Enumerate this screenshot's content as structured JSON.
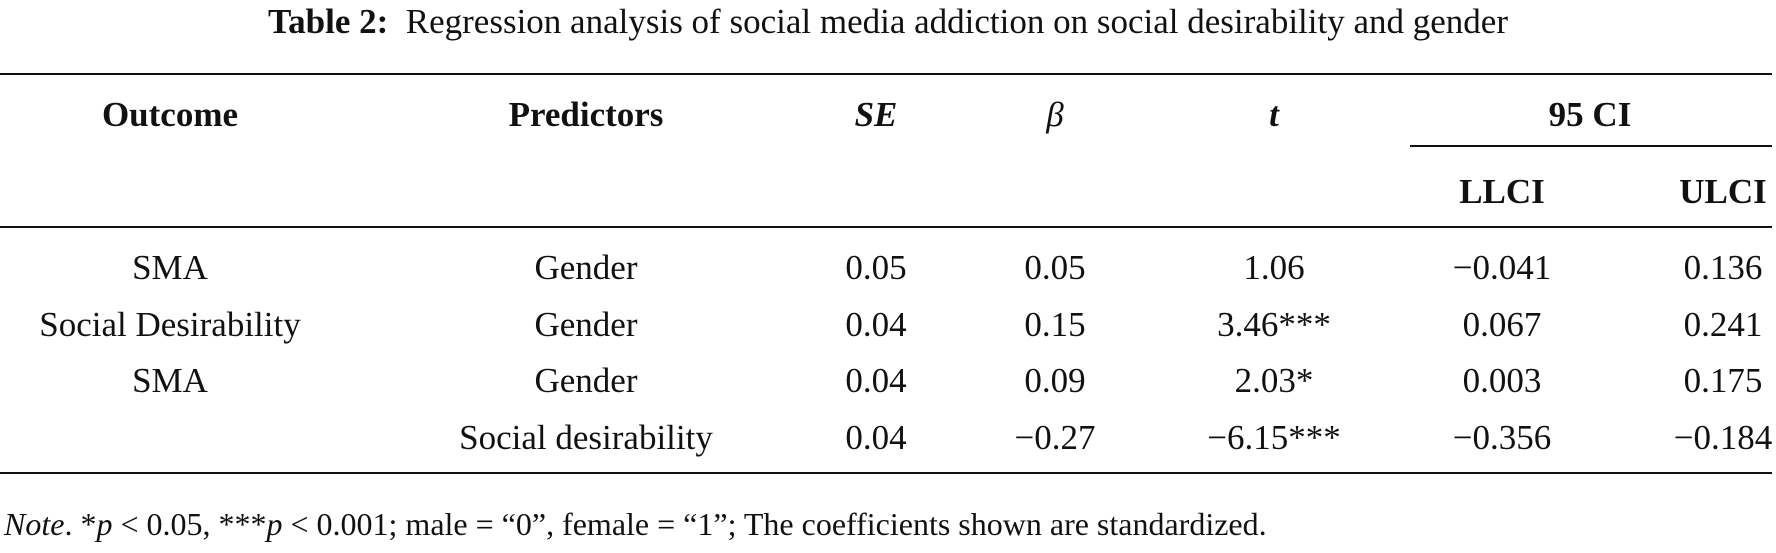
{
  "caption": {
    "label": "Table 2:",
    "text": "Regression analysis of social media addiction on social desirability and gender"
  },
  "headers": {
    "outcome": "Outcome",
    "predictors": "Predictors",
    "se": "SE",
    "beta": "β",
    "t": "t",
    "ci": "95 CI",
    "llci": "LLCI",
    "ulci": "ULCI"
  },
  "rows": [
    {
      "outcome": "SMA",
      "predictor": "Gender",
      "se": "0.05",
      "beta": "0.05",
      "t": "1.06",
      "llci": "−0.041",
      "ulci": "0.136"
    },
    {
      "outcome": "Social Desirability",
      "predictor": "Gender",
      "se": "0.04",
      "beta": "0.15",
      "t": "3.46***",
      "llci": "0.067",
      "ulci": "0.241"
    },
    {
      "outcome": "SMA",
      "predictor": "Gender",
      "se": "0.04",
      "beta": "0.09",
      "t": "2.03*",
      "llci": "0.003",
      "ulci": "0.175"
    },
    {
      "outcome": "",
      "predictor": "Social desirability",
      "se": "0.04",
      "beta": "−0.27",
      "t": "−6.15***",
      "llci": "−0.356",
      "ulci": "−0.184"
    }
  ],
  "note": {
    "label": "Note",
    "p1_stars": "*",
    "p1_symbol": "p",
    "p1_text": " < 0.05, ",
    "p2_stars": "***",
    "p2_symbol": "p",
    "p2_text": " < 0.001; male = “0”, female = “1”; The coefficients shown are standardized."
  }
}
